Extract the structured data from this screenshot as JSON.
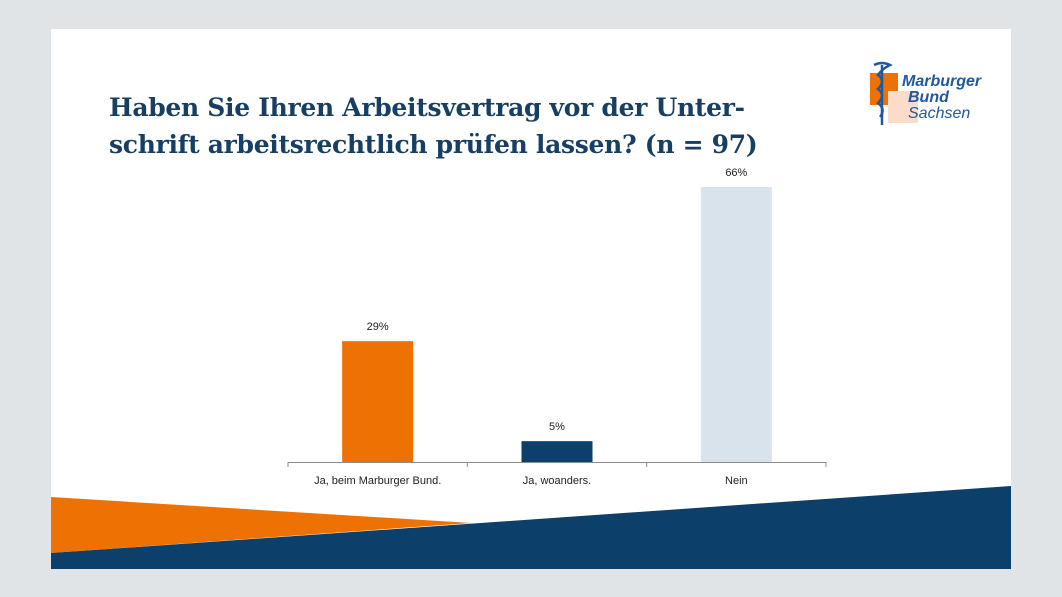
{
  "slide": {
    "title_line1": "Haben Sie Ihren Arbeitsvertrag vor der Unter-",
    "title_line2": "schrift arbeitsrechtlich prüfen lassen? (n = 97)"
  },
  "logo": {
    "line1": "Marburger",
    "line2": "Bund",
    "line3": "Sachsen",
    "icon": "rod-of-asclepius-icon"
  },
  "colors": {
    "title": "#173f63",
    "orange": "#ee7203",
    "navy": "#0c3f69",
    "light": "#d9e3ec",
    "axis": "#8c8c8c"
  },
  "chart_data": {
    "type": "bar",
    "title": "Haben Sie Ihren Arbeitsvertrag vor der Unterschrift arbeitsrechtlich prüfen lassen? (n = 97)",
    "categories": [
      "Ja, beim Marburger Bund.",
      "Ja, woanders.",
      "Nein"
    ],
    "values": [
      29,
      5,
      66
    ],
    "data_labels": [
      "29%",
      "5%",
      "66%"
    ],
    "bar_colors": [
      "#ee7203",
      "#0c3f69",
      "#d9e3ec"
    ],
    "xlabel": "",
    "ylabel": "",
    "ylim": [
      0,
      66
    ],
    "grid": false,
    "legend": "none"
  }
}
